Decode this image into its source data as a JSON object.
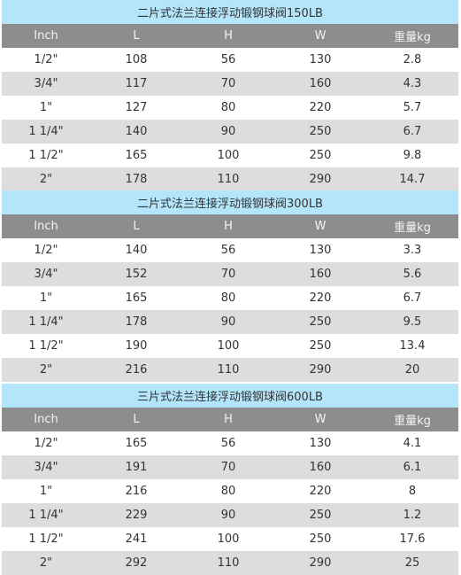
{
  "tables": [
    {
      "title": "二片式法兰连接浮动锻钢球阀150LB",
      "headers": [
        "Inch",
        "L",
        "H",
        "W",
        "重量kg"
      ],
      "rows": [
        [
          "1/2\"",
          "108",
          "56",
          "130",
          "2.8"
        ],
        [
          "3/4\"",
          "117",
          "70",
          "160",
          "4.3"
        ],
        [
          "1\"",
          "127",
          "80",
          "220",
          "5.7"
        ],
        [
          "1 1/4\"",
          "140",
          "90",
          "250",
          "6.7"
        ],
        [
          "1 1/2\"",
          "165",
          "100",
          "250",
          "9.8"
        ],
        [
          "2\"",
          "178",
          "110",
          "290",
          "14.7"
        ]
      ]
    },
    {
      "title": "二片式法兰连接浮动锻钢球阀300LB",
      "headers": [
        "Inch",
        "L",
        "H",
        "W",
        "重量kg"
      ],
      "rows": [
        [
          "1/2\"",
          "140",
          "56",
          "130",
          "3.3"
        ],
        [
          "3/4\"",
          "152",
          "70",
          "160",
          "5.6"
        ],
        [
          "1\"",
          "165",
          "80",
          "220",
          "6.7"
        ],
        [
          "1 1/4\"",
          "178",
          "90",
          "250",
          "9.5"
        ],
        [
          "1 1/2\"",
          "190",
          "100",
          "250",
          "13.4"
        ],
        [
          "2\"",
          "216",
          "110",
          "290",
          "20"
        ]
      ]
    },
    {
      "title": "三片式法兰连接浮动锻钢球阀600LB",
      "headers": [
        "Inch",
        "L",
        "H",
        "W",
        "重量kg"
      ],
      "rows": [
        [
          "1/2\"",
          "165",
          "56",
          "130",
          "4.1"
        ],
        [
          "3/4\"",
          "191",
          "70",
          "160",
          "6.1"
        ],
        [
          "1\"",
          "216",
          "80",
          "220",
          "8"
        ],
        [
          "1 1/4\"",
          "229",
          "90",
          "250",
          "1.2"
        ],
        [
          "1 1/2\"",
          "241",
          "100",
          "250",
          "17.6"
        ],
        [
          "2\"",
          "292",
          "110",
          "290",
          "25"
        ]
      ]
    }
  ]
}
